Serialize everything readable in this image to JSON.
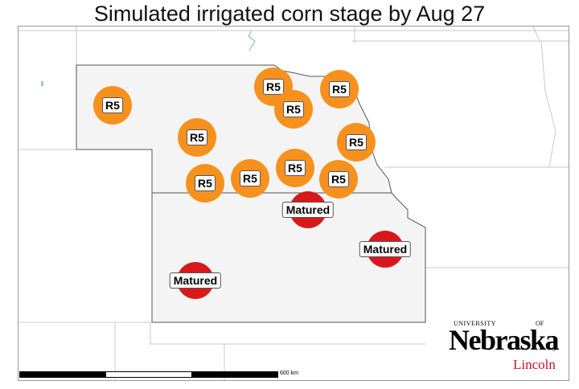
{
  "title": "Simulated irrigated corn stage by Aug 27",
  "legend_colors": {
    "R5": "#f7911e",
    "Matured": "#d7191c",
    "nebraska_fill": "#f4f4f4"
  },
  "markers": [
    {
      "label": "R5",
      "stage": "R5"
    },
    {
      "label": "R5",
      "stage": "R5"
    },
    {
      "label": "R5",
      "stage": "R5"
    },
    {
      "label": "R5",
      "stage": "R5"
    },
    {
      "label": "R5",
      "stage": "R5"
    },
    {
      "label": "R5",
      "stage": "R5"
    },
    {
      "label": "R5",
      "stage": "R5"
    },
    {
      "label": "R5",
      "stage": "R5"
    },
    {
      "label": "R5",
      "stage": "R5"
    },
    {
      "label": "R5",
      "stage": "R5"
    },
    {
      "label": "Matured",
      "stage": "Matured"
    },
    {
      "label": "Matured",
      "stage": "Matured"
    },
    {
      "label": "Matured",
      "stage": "Matured"
    }
  ],
  "scale_label": "600 km",
  "logo": {
    "university": "UNIVERSITY",
    "of": "OF",
    "name": "Nebraska",
    "reg": "®",
    "city": "Lincoln"
  }
}
